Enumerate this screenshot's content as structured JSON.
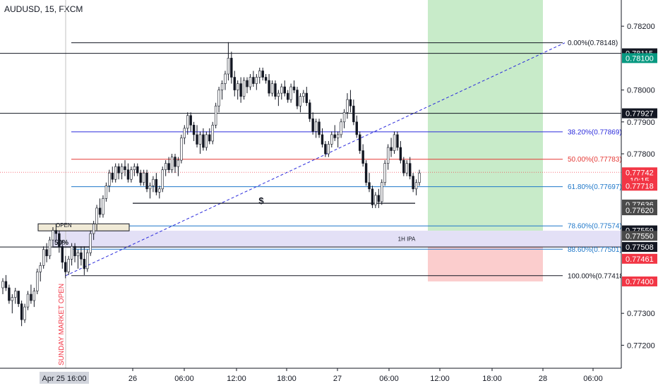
{
  "header": {
    "title": "AUDUSD, 15, FXCM"
  },
  "chart_data": {
    "type": "candlestick",
    "symbol": "AUDUSD",
    "timeframe": "15",
    "source": "FXCM",
    "ylim": [
      0.7715,
      0.7826
    ],
    "y_ticks": [
      "0.78200",
      "0.78000",
      "0.77900",
      "0.77800",
      "0.77300",
      "0.77200"
    ],
    "x_ticks": [
      "26",
      "06:00",
      "12:00",
      "18:00",
      "27",
      "06:00",
      "12:00",
      "18:00",
      "28",
      "06:00"
    ],
    "x_cursor_label": "Apr 25",
    "x_cursor_time": "16:00",
    "fib_levels": [
      {
        "label": "0.00%(0.78148)",
        "price": 0.78148,
        "color": "#131722"
      },
      {
        "label": "38.20%(0.77869)",
        "price": 0.77869,
        "color": "#2b2bdc"
      },
      {
        "label": "50.00%(0.77783)",
        "price": 0.77783,
        "color": "#e53935"
      },
      {
        "label": "61.80%(0.77697)",
        "price": 0.77697,
        "color": "#1e77c9"
      },
      {
        "label": "78.60%(0.77574)",
        "price": 0.77574,
        "color": "#1e77c9"
      },
      {
        "label": "88.60%(0.77501)",
        "price": 0.77501,
        "color": "#1e77c9"
      },
      {
        "label": "100.00%(0.77418)",
        "price": 0.77418,
        "color": "#131722"
      }
    ],
    "horizontal_lines": [
      {
        "price": 0.78115,
        "label": "0.78115"
      },
      {
        "price": 0.77927,
        "label": "0.77927"
      },
      {
        "price": 0.77508,
        "label": "0.77508"
      }
    ],
    "price_badges": [
      {
        "label": "0.78115",
        "bg": "#131722",
        "fg": "#ffffff",
        "price": 0.78115
      },
      {
        "label": "0.78100",
        "bg": "#089981",
        "fg": "#ffffff",
        "price": 0.781
      },
      {
        "label": "0.77927",
        "bg": "#131722",
        "fg": "#ffffff",
        "price": 0.77927
      },
      {
        "label": "0.77742",
        "bg": "#f23645",
        "fg": "#ffffff",
        "price": 0.77742,
        "sub": "10:15"
      },
      {
        "label": "0.77718",
        "bg": "#f23645",
        "fg": "#ffffff",
        "price": 0.777
      },
      {
        "label": "0.77636",
        "bg": "#4a4a4a",
        "fg": "#ffffff",
        "price": 0.77641
      },
      {
        "label": "0.77620",
        "bg": "#4a4a4a",
        "fg": "#ffffff",
        "price": 0.77623
      },
      {
        "label": "0.77559",
        "bg": "#131722",
        "fg": "#ffffff",
        "price": 0.7756
      },
      {
        "label": "0.77550",
        "bg": "#4a4a4a",
        "fg": "#ffffff",
        "price": 0.77543
      },
      {
        "label": "0.77508",
        "bg": "#131722",
        "fg": "#ffffff",
        "price": 0.77508
      },
      {
        "label": "0.77461",
        "bg": "#f23645",
        "fg": "#ffffff",
        "price": 0.77471
      },
      {
        "label": "0.77400",
        "bg": "#f23645",
        "fg": "#ffffff",
        "price": 0.774
      }
    ],
    "annotations": {
      "sunday_open": "SUNDAY MARKET OPEN",
      "open_box": "OPEN",
      "fifty": "50%",
      "ipa": "1H IPA",
      "dollar": "$"
    },
    "zones": {
      "ipa_zone": [
        0.77559,
        0.77508
      ],
      "target_top": 0.782,
      "entry": 0.77559,
      "stop": 0.774
    },
    "candles": [
      [
        0.7738,
        0.7741,
        0.7736,
        0.774
      ],
      [
        0.774,
        0.7742,
        0.7737,
        0.7738
      ],
      [
        0.7738,
        0.7739,
        0.7733,
        0.7734
      ],
      [
        0.7734,
        0.7736,
        0.773,
        0.7735
      ],
      [
        0.7735,
        0.7738,
        0.7733,
        0.7737
      ],
      [
        0.7737,
        0.7737,
        0.7732,
        0.7733
      ],
      [
        0.7733,
        0.7734,
        0.7726,
        0.7728
      ],
      [
        0.7728,
        0.7733,
        0.7727,
        0.7732
      ],
      [
        0.7732,
        0.7737,
        0.7731,
        0.7736
      ],
      [
        0.7736,
        0.7739,
        0.7733,
        0.7734
      ],
      [
        0.7734,
        0.7738,
        0.7732,
        0.7737
      ],
      [
        0.7737,
        0.7744,
        0.7736,
        0.7743
      ],
      [
        0.7743,
        0.7746,
        0.774,
        0.7745
      ],
      [
        0.7745,
        0.7751,
        0.7744,
        0.775
      ],
      [
        0.775,
        0.7752,
        0.7746,
        0.7748
      ],
      [
        0.7748,
        0.7754,
        0.7747,
        0.7753
      ],
      [
        0.7753,
        0.7757,
        0.7751,
        0.7756
      ],
      [
        0.7756,
        0.7758,
        0.7753,
        0.7755
      ],
      [
        0.7755,
        0.7756,
        0.7749,
        0.7751
      ],
      [
        0.7751,
        0.7753,
        0.7744,
        0.7746
      ],
      [
        0.7746,
        0.7748,
        0.7741,
        0.7743
      ],
      [
        0.7743,
        0.7748,
        0.7742,
        0.7747
      ],
      [
        0.7747,
        0.7752,
        0.7745,
        0.7751
      ],
      [
        0.7751,
        0.7752,
        0.7746,
        0.7748
      ],
      [
        0.7748,
        0.775,
        0.7744,
        0.7749
      ],
      [
        0.7749,
        0.7751,
        0.7745,
        0.7747
      ],
      [
        0.7747,
        0.7751,
        0.7742,
        0.7744
      ],
      [
        0.7744,
        0.775,
        0.7743,
        0.7749
      ],
      [
        0.7749,
        0.7756,
        0.7748,
        0.7755
      ],
      [
        0.7755,
        0.7759,
        0.7753,
        0.7758
      ],
      [
        0.7758,
        0.7764,
        0.7756,
        0.7763
      ],
      [
        0.7763,
        0.7766,
        0.776,
        0.7761
      ],
      [
        0.7761,
        0.7767,
        0.776,
        0.7766
      ],
      [
        0.7766,
        0.7771,
        0.7765,
        0.777
      ],
      [
        0.777,
        0.7775,
        0.7768,
        0.7774
      ],
      [
        0.7774,
        0.7776,
        0.7771,
        0.7772
      ],
      [
        0.7772,
        0.7777,
        0.7771,
        0.7776
      ],
      [
        0.7776,
        0.7777,
        0.7772,
        0.7774
      ],
      [
        0.7774,
        0.7777,
        0.7772,
        0.7776
      ],
      [
        0.7776,
        0.7778,
        0.7773,
        0.7775
      ],
      [
        0.7775,
        0.7777,
        0.7771,
        0.7772
      ],
      [
        0.7772,
        0.7776,
        0.7771,
        0.7775
      ],
      [
        0.7775,
        0.7777,
        0.7773,
        0.7776
      ],
      [
        0.7776,
        0.7777,
        0.7773,
        0.7774
      ],
      [
        0.7774,
        0.7775,
        0.777,
        0.7771
      ],
      [
        0.7771,
        0.7775,
        0.777,
        0.7774
      ],
      [
        0.7774,
        0.7775,
        0.7768,
        0.7769
      ],
      [
        0.7769,
        0.7771,
        0.7766,
        0.777
      ],
      [
        0.777,
        0.7773,
        0.7768,
        0.7772
      ],
      [
        0.7772,
        0.7774,
        0.7767,
        0.7768
      ],
      [
        0.7768,
        0.777,
        0.7766,
        0.7769
      ],
      [
        0.7769,
        0.7776,
        0.7768,
        0.7775
      ],
      [
        0.7775,
        0.7778,
        0.7773,
        0.7777
      ],
      [
        0.7777,
        0.7779,
        0.7774,
        0.7775
      ],
      [
        0.7775,
        0.778,
        0.7774,
        0.7779
      ],
      [
        0.7779,
        0.778,
        0.7774,
        0.7776
      ],
      [
        0.7776,
        0.7779,
        0.7773,
        0.7778
      ],
      [
        0.7778,
        0.7786,
        0.7777,
        0.7785
      ],
      [
        0.7785,
        0.7789,
        0.7783,
        0.7788
      ],
      [
        0.7788,
        0.7793,
        0.7786,
        0.7792
      ],
      [
        0.7792,
        0.7793,
        0.7787,
        0.7789
      ],
      [
        0.7789,
        0.779,
        0.7784,
        0.7786
      ],
      [
        0.7786,
        0.7789,
        0.7782,
        0.7783
      ],
      [
        0.7783,
        0.7787,
        0.778,
        0.7786
      ],
      [
        0.7786,
        0.7788,
        0.7781,
        0.7782
      ],
      [
        0.7782,
        0.7787,
        0.7781,
        0.7786
      ],
      [
        0.7786,
        0.7788,
        0.7783,
        0.7784
      ],
      [
        0.7784,
        0.779,
        0.7783,
        0.7789
      ],
      [
        0.7789,
        0.7796,
        0.7788,
        0.7795
      ],
      [
        0.7795,
        0.7801,
        0.7793,
        0.78
      ],
      [
        0.78,
        0.7803,
        0.7797,
        0.7802
      ],
      [
        0.7802,
        0.7806,
        0.78,
        0.7805
      ],
      [
        0.7805,
        0.7815,
        0.7803,
        0.781
      ],
      [
        0.781,
        0.7812,
        0.7802,
        0.7804
      ],
      [
        0.7804,
        0.7806,
        0.7798,
        0.78
      ],
      [
        0.78,
        0.7803,
        0.7797,
        0.7802
      ],
      [
        0.7802,
        0.7804,
        0.7796,
        0.7798
      ],
      [
        0.7798,
        0.7804,
        0.7797,
        0.7803
      ],
      [
        0.7803,
        0.7804,
        0.7799,
        0.7801
      ],
      [
        0.7801,
        0.7805,
        0.78,
        0.7804
      ],
      [
        0.7804,
        0.7806,
        0.7801,
        0.7802
      ],
      [
        0.7802,
        0.7805,
        0.78,
        0.7804
      ],
      [
        0.7804,
        0.7807,
        0.7802,
        0.7806
      ],
      [
        0.7806,
        0.7807,
        0.7803,
        0.7804
      ],
      [
        0.7804,
        0.7805,
        0.7802,
        0.7803
      ],
      [
        0.7803,
        0.7805,
        0.7798,
        0.7799
      ],
      [
        0.7799,
        0.7803,
        0.7798,
        0.7802
      ],
      [
        0.7802,
        0.7803,
        0.7797,
        0.7798
      ],
      [
        0.7798,
        0.78,
        0.7795,
        0.7799
      ],
      [
        0.7799,
        0.7802,
        0.7797,
        0.7801
      ],
      [
        0.7801,
        0.7803,
        0.7798,
        0.7799
      ],
      [
        0.7799,
        0.78,
        0.7796,
        0.7797
      ],
      [
        0.7797,
        0.7802,
        0.7796,
        0.7801
      ],
      [
        0.7801,
        0.7803,
        0.7799,
        0.78
      ],
      [
        0.78,
        0.7801,
        0.7794,
        0.7795
      ],
      [
        0.7795,
        0.7799,
        0.7793,
        0.7798
      ],
      [
        0.7798,
        0.78,
        0.7796,
        0.7799
      ],
      [
        0.7799,
        0.7801,
        0.7795,
        0.7796
      ],
      [
        0.7796,
        0.7797,
        0.779,
        0.7791
      ],
      [
        0.7791,
        0.7793,
        0.7786,
        0.7787
      ],
      [
        0.7787,
        0.7791,
        0.7785,
        0.779
      ],
      [
        0.779,
        0.7791,
        0.7785,
        0.7786
      ],
      [
        0.7786,
        0.7788,
        0.7782,
        0.7783
      ],
      [
        0.7783,
        0.7784,
        0.7779,
        0.778
      ],
      [
        0.778,
        0.7784,
        0.7779,
        0.7783
      ],
      [
        0.7783,
        0.7787,
        0.7782,
        0.7786
      ],
      [
        0.7786,
        0.7789,
        0.7784,
        0.7785
      ],
      [
        0.7785,
        0.7787,
        0.7782,
        0.7786
      ],
      [
        0.7786,
        0.7791,
        0.7785,
        0.779
      ],
      [
        0.779,
        0.7794,
        0.7788,
        0.7793
      ],
      [
        0.7793,
        0.7799,
        0.7791,
        0.7797
      ],
      [
        0.7797,
        0.78,
        0.7793,
        0.7795
      ],
      [
        0.7795,
        0.7797,
        0.7789,
        0.779
      ],
      [
        0.779,
        0.7792,
        0.7785,
        0.7786
      ],
      [
        0.7786,
        0.7787,
        0.778,
        0.7781
      ],
      [
        0.7781,
        0.7783,
        0.7776,
        0.7777
      ],
      [
        0.7777,
        0.7778,
        0.777,
        0.7771
      ],
      [
        0.7771,
        0.7774,
        0.7768,
        0.7769
      ],
      [
        0.7769,
        0.777,
        0.7763,
        0.7764
      ],
      [
        0.7764,
        0.7768,
        0.7763,
        0.7767
      ],
      [
        0.7767,
        0.7769,
        0.7763,
        0.7765
      ],
      [
        0.7765,
        0.7772,
        0.7764,
        0.7771
      ],
      [
        0.7771,
        0.7778,
        0.777,
        0.7777
      ],
      [
        0.7777,
        0.7783,
        0.7775,
        0.7782
      ],
      [
        0.7782,
        0.7785,
        0.7779,
        0.7781
      ],
      [
        0.7781,
        0.7787,
        0.778,
        0.7786
      ],
      [
        0.7786,
        0.7787,
        0.7781,
        0.7782
      ],
      [
        0.7782,
        0.7784,
        0.7777,
        0.7778
      ],
      [
        0.7778,
        0.7779,
        0.7773,
        0.7774
      ],
      [
        0.7774,
        0.7778,
        0.7773,
        0.7777
      ],
      [
        0.7777,
        0.7779,
        0.7772,
        0.7773
      ],
      [
        0.7773,
        0.7774,
        0.7768,
        0.7769
      ],
      [
        0.7769,
        0.7772,
        0.7767,
        0.7771
      ],
      [
        0.7771,
        0.7775,
        0.777,
        0.7774
      ]
    ]
  }
}
